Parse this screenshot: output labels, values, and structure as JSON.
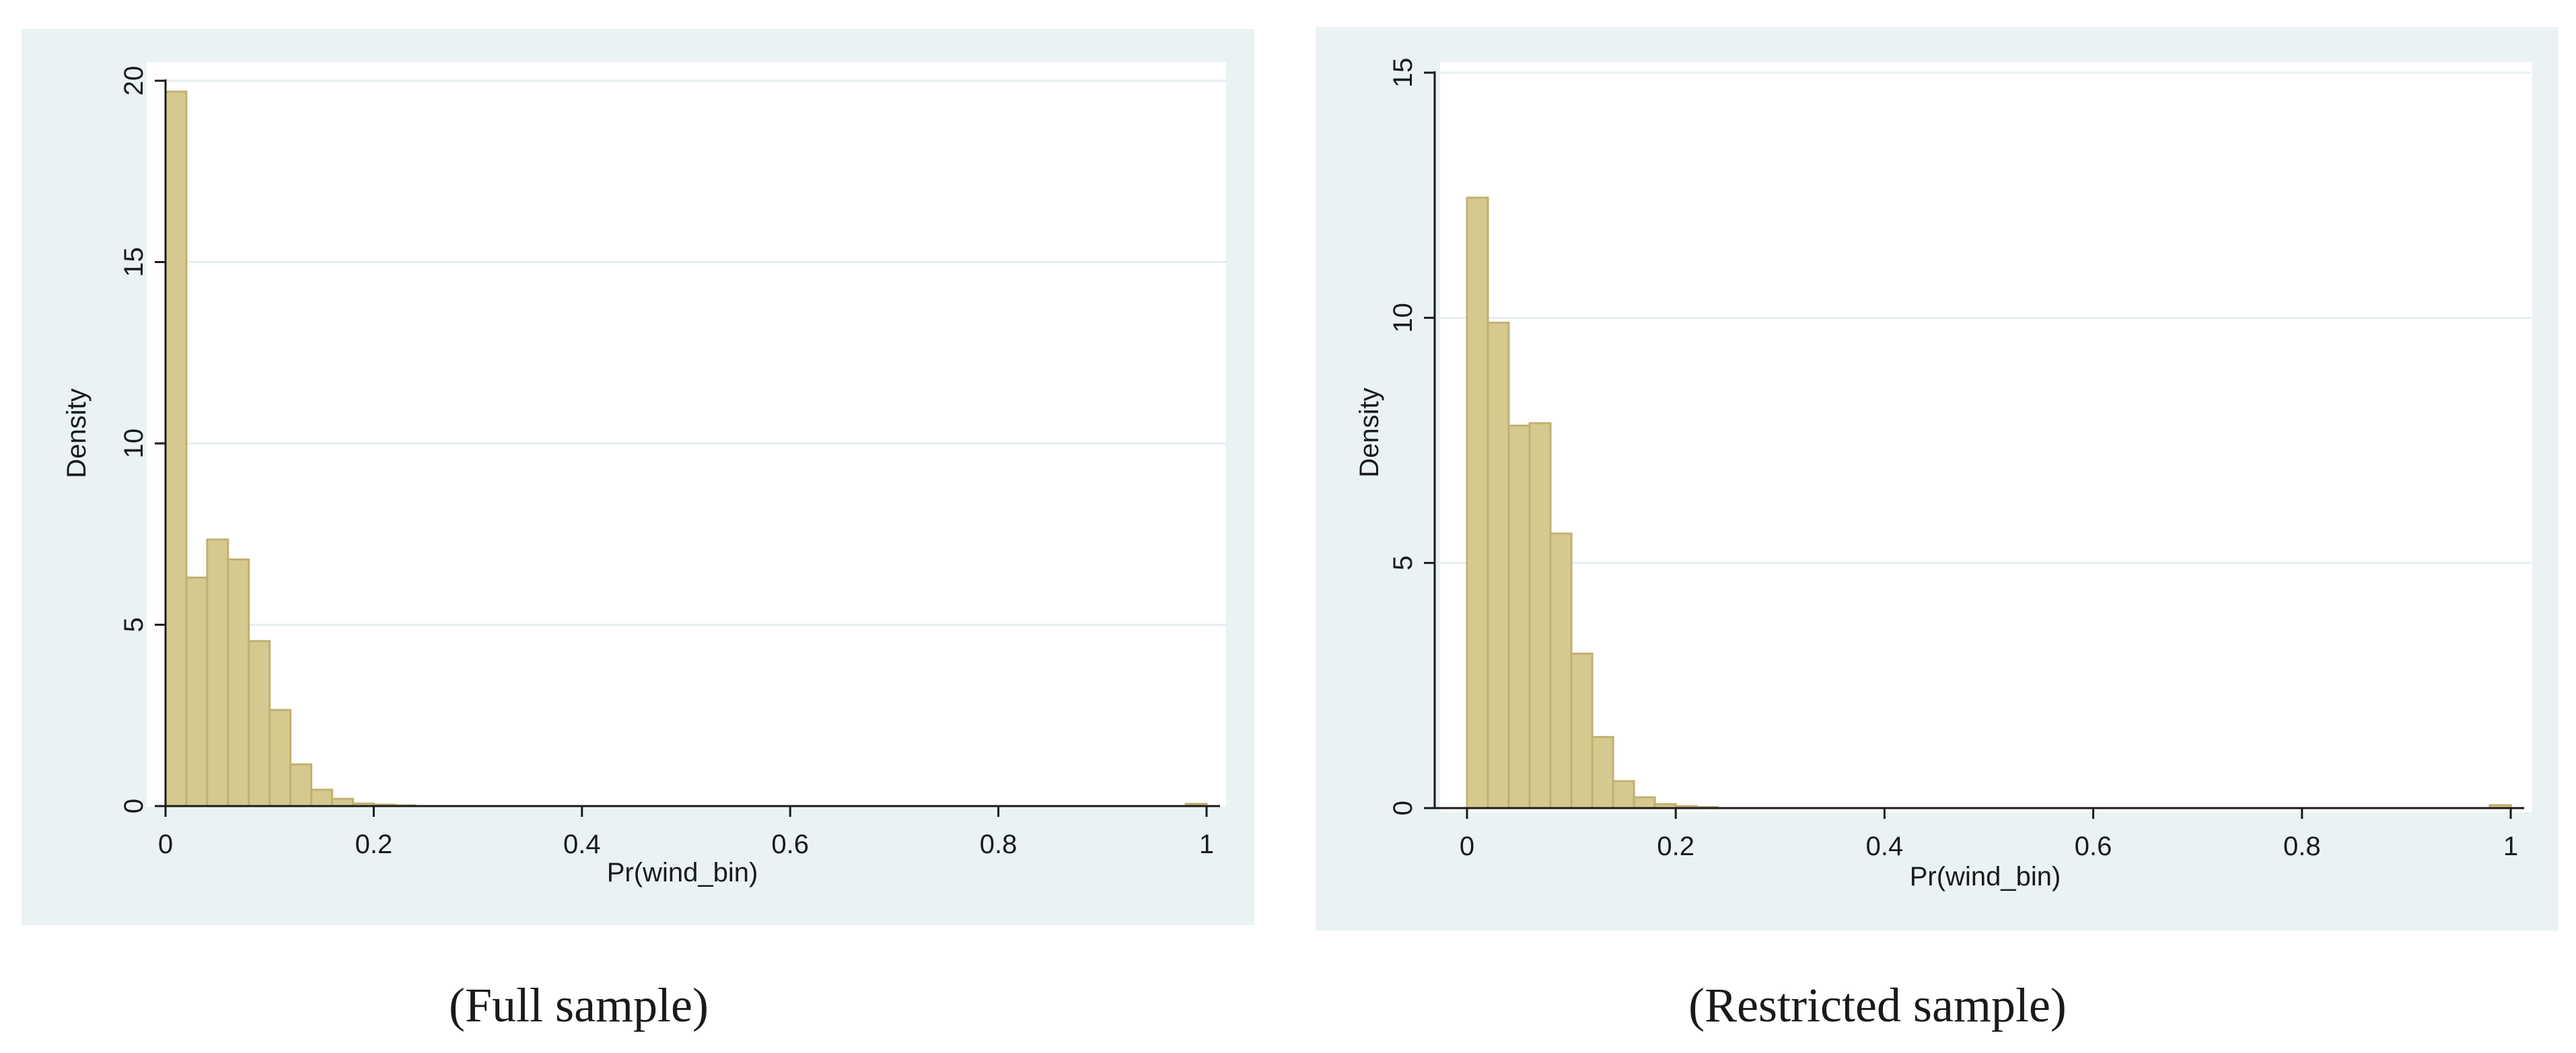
{
  "colors": {
    "panel_background": "#eaf2f3",
    "plot_background": "#ffffff",
    "gridline": "#e6eef0",
    "bar_fill": "#d6c98f",
    "bar_stroke": "#c1b071",
    "axis": "#1a1a1a"
  },
  "chart_data": [
    {
      "type": "bar",
      "subtype": "histogram",
      "caption": "(Full sample)",
      "xlabel": "Pr(wind_bin)",
      "ylabel": "Density",
      "xlim": [
        0,
        1
      ],
      "ylim": [
        0,
        20
      ],
      "xticks": [
        0,
        0.2,
        0.4,
        0.6,
        0.8,
        1
      ],
      "xtick_labels": [
        "0",
        "0.2",
        "0.4",
        "0.6",
        "0.8",
        "1"
      ],
      "yticks": [
        0,
        5,
        10,
        15,
        20
      ],
      "ytick_labels": [
        "0",
        "5",
        "10",
        "15",
        "20"
      ],
      "grid": true,
      "bin_width": 0.02,
      "bins": [
        {
          "x": 0.0,
          "value": 19.7
        },
        {
          "x": 0.02,
          "value": 6.3
        },
        {
          "x": 0.04,
          "value": 7.35
        },
        {
          "x": 0.06,
          "value": 6.8
        },
        {
          "x": 0.08,
          "value": 4.55
        },
        {
          "x": 0.1,
          "value": 2.65
        },
        {
          "x": 0.12,
          "value": 1.15
        },
        {
          "x": 0.14,
          "value": 0.45
        },
        {
          "x": 0.16,
          "value": 0.2
        },
        {
          "x": 0.18,
          "value": 0.07
        },
        {
          "x": 0.2,
          "value": 0.04
        },
        {
          "x": 0.22,
          "value": 0.02
        },
        {
          "x": 0.98,
          "value": 0.06
        }
      ]
    },
    {
      "type": "bar",
      "subtype": "histogram",
      "caption": "(Restricted sample)",
      "xlabel": "Pr(wind_bin)",
      "ylabel": "Density",
      "xlim": [
        0,
        1
      ],
      "ylim": [
        0,
        15
      ],
      "xticks": [
        0,
        0.2,
        0.4,
        0.6,
        0.8,
        1
      ],
      "xtick_labels": [
        "0",
        "0.2",
        "0.4",
        "0.6",
        "0.8",
        "1"
      ],
      "yticks": [
        0,
        5,
        10,
        15
      ],
      "ytick_labels": [
        "0",
        "5",
        "10",
        "15"
      ],
      "grid": true,
      "bin_width": 0.02,
      "bins": [
        {
          "x": 0.0,
          "value": 12.45
        },
        {
          "x": 0.02,
          "value": 9.9
        },
        {
          "x": 0.04,
          "value": 7.8
        },
        {
          "x": 0.06,
          "value": 7.85
        },
        {
          "x": 0.08,
          "value": 5.6
        },
        {
          "x": 0.1,
          "value": 3.15
        },
        {
          "x": 0.12,
          "value": 1.45
        },
        {
          "x": 0.14,
          "value": 0.55
        },
        {
          "x": 0.16,
          "value": 0.22
        },
        {
          "x": 0.18,
          "value": 0.08
        },
        {
          "x": 0.2,
          "value": 0.04
        },
        {
          "x": 0.22,
          "value": 0.02
        },
        {
          "x": 0.98,
          "value": 0.06
        }
      ]
    }
  ]
}
